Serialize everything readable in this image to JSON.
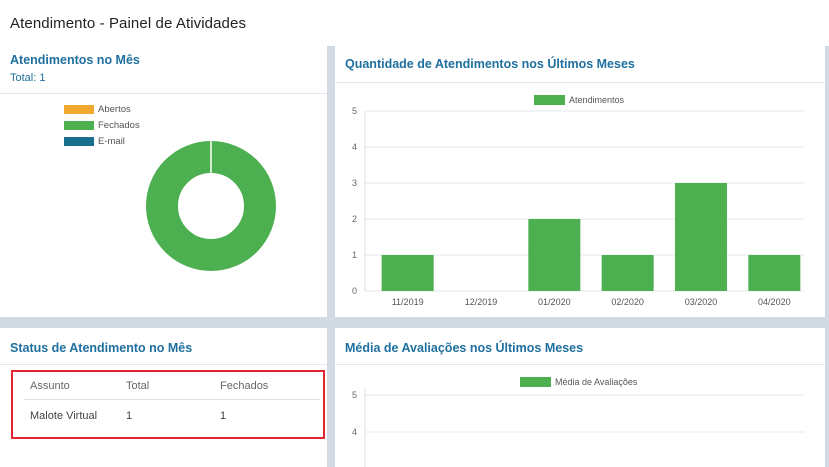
{
  "page": {
    "title": "Atendimento - Painel de Atividades"
  },
  "month_panel": {
    "title": "Atendimentos no Mês",
    "total_label": "Total: 1",
    "legend": [
      {
        "label": "Abertos",
        "color": "#f0a830"
      },
      {
        "label": "Fechados",
        "color": "#4caf50"
      },
      {
        "label": "E-mail",
        "color": "#1a6f8c"
      }
    ]
  },
  "history_panel": {
    "title": "Quantidade de Atendimentos nos Últimos Meses"
  },
  "status_panel": {
    "title": "Status de Atendimento no Mês",
    "columns": [
      "Assunto",
      "Total",
      "Fechados"
    ],
    "rows": [
      {
        "assunto": "Malote Virtual",
        "total": "1",
        "fechados": "1"
      }
    ]
  },
  "rating_panel": {
    "title": "Média de Avaliações nos Últimos Meses"
  },
  "chart_data": [
    {
      "type": "pie",
      "categories": [
        "Abertos",
        "Fechados",
        "E-mail"
      ],
      "values": [
        0,
        1,
        0
      ],
      "colors": [
        "#f0a830",
        "#4caf50",
        "#1a6f8c"
      ],
      "legend_placement": "top-left"
    },
    {
      "type": "bar",
      "categories": [
        "11/2019",
        "12/2019",
        "01/2020",
        "02/2020",
        "03/2020",
        "04/2020"
      ],
      "series": [
        {
          "name": "Atendimentos",
          "values": [
            1,
            0,
            2,
            1,
            3,
            1
          ],
          "color": "#4caf50"
        }
      ],
      "yticks": [
        "0",
        "1",
        "2",
        "3",
        "4",
        "5"
      ],
      "ylim": [
        0,
        5
      ],
      "grid": true,
      "legend_placement": "top-center"
    },
    {
      "type": "bar",
      "categories": [],
      "series": [
        {
          "name": "Média de Avaliações",
          "values": [],
          "color": "#4caf50"
        }
      ],
      "yticks": [
        "4",
        "5"
      ],
      "grid": true,
      "legend_placement": "top-center"
    }
  ]
}
